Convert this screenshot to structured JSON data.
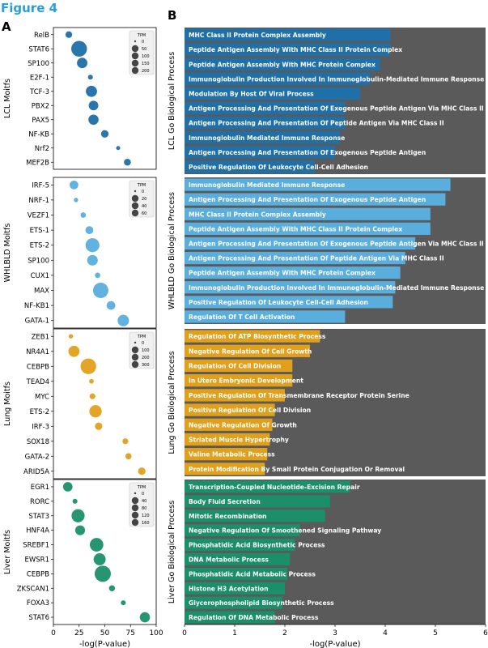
{
  "figure_title": "Figure 4",
  "panel_a_label": "A",
  "panel_b_label": "B",
  "colors": {
    "LCL": "#1f6fa8",
    "WHLBLD": "#5aaede",
    "Lung": "#e1a01c",
    "Liver": "#1a8f6a",
    "title": "#2a9fd6",
    "panel_bg": "#5a5a5a"
  },
  "chart_data": [
    {
      "type": "scatter",
      "panel": "A",
      "xlabel": "-log(P-value)",
      "xlim": [
        0,
        100
      ],
      "xticks": [
        "0",
        "25",
        "50",
        "75",
        "100"
      ],
      "size_legend_title": "TPM",
      "groups": [
        {
          "id": "LCL",
          "ylabel": "LCL Moitfs",
          "size_ticks": [
            0,
            50,
            100,
            150,
            200
          ],
          "points": [
            {
              "label": "RelB",
              "x": 15,
              "tpm": 25
            },
            {
              "label": "STAT6",
              "x": 25,
              "tpm": 210
            },
            {
              "label": "SP100",
              "x": 28,
              "tpm": 80
            },
            {
              "label": "E2F-1",
              "x": 36,
              "tpm": 10
            },
            {
              "label": "TCF-3",
              "x": 37,
              "tpm": 95
            },
            {
              "label": "PBX2",
              "x": 39,
              "tpm": 65
            },
            {
              "label": "PAX5",
              "x": 39,
              "tpm": 75
            },
            {
              "label": "NF-KB",
              "x": 50,
              "tpm": 35
            },
            {
              "label": "Nrf2",
              "x": 63,
              "tpm": 5
            },
            {
              "label": "MEF2B",
              "x": 72,
              "tpm": 28
            }
          ]
        },
        {
          "id": "WHLBLD",
          "ylabel": "WHLBLD Moitfs",
          "size_ticks": [
            0,
            20,
            40,
            60
          ],
          "points": [
            {
              "label": "IRF-5",
              "x": 20,
              "tpm": 15
            },
            {
              "label": "NRF-1",
              "x": 22,
              "tpm": 2
            },
            {
              "label": "VEZF1",
              "x": 29,
              "tpm": 4
            },
            {
              "label": "ETS-1",
              "x": 35,
              "tpm": 12
            },
            {
              "label": "ETS-2",
              "x": 38,
              "tpm": 48
            },
            {
              "label": "SP100",
              "x": 38,
              "tpm": 25
            },
            {
              "label": "CUX1",
              "x": 43,
              "tpm": 4
            },
            {
              "label": "MAX",
              "x": 46,
              "tpm": 60
            },
            {
              "label": "NF-KB1",
              "x": 56,
              "tpm": 15
            },
            {
              "label": "GATA-1",
              "x": 68,
              "tpm": 30
            }
          ]
        },
        {
          "id": "Lung",
          "ylabel": "Lung Moitfs",
          "size_ticks": [
            0,
            100,
            200,
            300
          ],
          "points": [
            {
              "label": "ZEB1",
              "x": 17,
              "tpm": 10
            },
            {
              "label": "NR4A1",
              "x": 20,
              "tpm": 140
            },
            {
              "label": "CEBPB",
              "x": 34,
              "tpm": 310
            },
            {
              "label": "TEAD4",
              "x": 37,
              "tpm": 12
            },
            {
              "label": "MYC",
              "x": 38,
              "tpm": 25
            },
            {
              "label": "ETS-2",
              "x": 41,
              "tpm": 180
            },
            {
              "label": "IRF-3",
              "x": 44,
              "tpm": 50
            },
            {
              "label": "SOX18",
              "x": 70,
              "tpm": 25
            },
            {
              "label": "GATA-2",
              "x": 73,
              "tpm": 30
            },
            {
              "label": "ARID5A",
              "x": 86,
              "tpm": 50
            }
          ]
        },
        {
          "id": "Liver",
          "ylabel": "Liver Moitfs",
          "size_ticks": [
            0,
            40,
            80,
            120,
            160
          ],
          "points": [
            {
              "label": "EGR1",
              "x": 14,
              "tpm": 50
            },
            {
              "label": "RORC",
              "x": 21,
              "tpm": 8
            },
            {
              "label": "STAT3",
              "x": 24,
              "tpm": 110
            },
            {
              "label": "HNF4A",
              "x": 26,
              "tpm": 55
            },
            {
              "label": "SREBF1",
              "x": 42,
              "tpm": 120
            },
            {
              "label": "EWSR1",
              "x": 45,
              "tpm": 90
            },
            {
              "label": "CEBPB",
              "x": 48,
              "tpm": 180
            },
            {
              "label": "ZKSCAN1",
              "x": 57,
              "tpm": 15
            },
            {
              "label": "FOXA3",
              "x": 68,
              "tpm": 8
            },
            {
              "label": "STAT6",
              "x": 89,
              "tpm": 60
            }
          ]
        }
      ]
    },
    {
      "type": "bar",
      "orientation": "horizontal",
      "panel": "B",
      "xlabel": "-log(P-value)",
      "xlim": [
        0,
        6
      ],
      "xticks": [
        "0",
        "1",
        "2",
        "3",
        "4",
        "5",
        "6"
      ],
      "groups": [
        {
          "id": "LCL",
          "ylabel": "LCL Go Biological Process",
          "bars": [
            {
              "label": "MHC Class II Protein Complex Assembly",
              "value": 4.1
            },
            {
              "label": "Peptide Antigen Assembly With MHC Class II Protein Complex",
              "value": 4.1
            },
            {
              "label": "Peptide Antigen Assembly With MHC Protein Complex",
              "value": 3.9
            },
            {
              "label": "Immunoglobulin Production Involved In Immunoglobulin-Mediated Immune Response",
              "value": 3.7
            },
            {
              "label": "Modulation By Host Of Viral Process",
              "value": 3.5
            },
            {
              "label": "Antigen Processing And Presentation Of Exogenous Peptide Antigen Via MHC Class II",
              "value": 3.2
            },
            {
              "label": "Antigen Processing And Presentation Of Peptide Antigen Via MHC Class II",
              "value": 3.2
            },
            {
              "label": "Immunoglobulin Mediated Immune Response",
              "value": 3.1
            },
            {
              "label": "Antigen Processing And Presentation Of Exogenous Peptide Antigen",
              "value": 3.0
            },
            {
              "label": "Positive Regulation Of Leukocyte Cell-Cell Adhesion",
              "value": 2.6
            }
          ]
        },
        {
          "id": "WHLBLD",
          "ylabel": "WHLBLD Go Biological Process",
          "bars": [
            {
              "label": "Immunoglobulin Mediated Immune Response",
              "value": 5.3
            },
            {
              "label": "Antigen Processing And Presentation Of Exogenous Peptide Antigen",
              "value": 5.2
            },
            {
              "label": "MHC Class II Protein Complex Assembly",
              "value": 4.9
            },
            {
              "label": "Peptide Antigen Assembly With MHC Class II Protein Complex",
              "value": 4.9
            },
            {
              "label": "Antigen Processing And Presentation Of Exogenous Peptide Antigen Via MHC Class II",
              "value": 4.6
            },
            {
              "label": "Antigen Processing And Presentation Of Peptide Antigen Via MHC Class II",
              "value": 4.4
            },
            {
              "label": "Peptide Antigen Assembly With MHC Protein Complex",
              "value": 4.3
            },
            {
              "label": "Immunoglobulin Production Involved In Immunoglobulin-Mediated Immune Response",
              "value": 4.2
            },
            {
              "label": "Positive Regulation Of Leukocyte Cell-Cell Adhesion",
              "value": 4.15
            },
            {
              "label": "Regulation Of T Cell Activation",
              "value": 3.2
            }
          ]
        },
        {
          "id": "Lung",
          "ylabel": "Lung Go Biological Process",
          "bars": [
            {
              "label": "Regulation Of ATP Biosynthetic Process",
              "value": 2.7
            },
            {
              "label": "Negative Regulation Of Cell Growth",
              "value": 2.5
            },
            {
              "label": "Regulation Of Cell Division",
              "value": 2.15
            },
            {
              "label": "In Utero Embryonic Development",
              "value": 2.15
            },
            {
              "label": "Positive Regulation Of Transmembrane Receptor Protein Serine",
              "value": 2.0
            },
            {
              "label": "Positive Regulation Of Cell Division",
              "value": 1.8
            },
            {
              "label": "Negative Regulation Of Growth",
              "value": 1.75
            },
            {
              "label": "Striated Muscle Hypertrophy",
              "value": 1.7
            },
            {
              "label": "Valine Metabolic Process",
              "value": 1.65
            },
            {
              "label": "Protein Modification By Small Protein Conjugation Or Removal",
              "value": 1.6
            }
          ]
        },
        {
          "id": "Liver",
          "ylabel": "Liver Go Biological Process",
          "bars": [
            {
              "label": "Transcription-Coupled Nucleotide-Excision Repair",
              "value": 3.3
            },
            {
              "label": "Body Fluid Secretion",
              "value": 2.9
            },
            {
              "label": "Mitotic Recombination",
              "value": 2.8
            },
            {
              "label": "Negative Regulation Of Smoothened Signaling Pathway",
              "value": 2.3
            },
            {
              "label": "Phosphatidic Acid Biosynthetic Process",
              "value": 2.2
            },
            {
              "label": "DNA Metabolic Process",
              "value": 2.1
            },
            {
              "label": "Phosphatidic Acid Metabolic Process",
              "value": 2.05
            },
            {
              "label": "Histone H3 Acetylation",
              "value": 2.0
            },
            {
              "label": "Glycerophospholipid Biosynthetic Process",
              "value": 1.95
            },
            {
              "label": "Regulation Of DNA Metabolic Process",
              "value": 1.8
            }
          ]
        }
      ]
    }
  ]
}
